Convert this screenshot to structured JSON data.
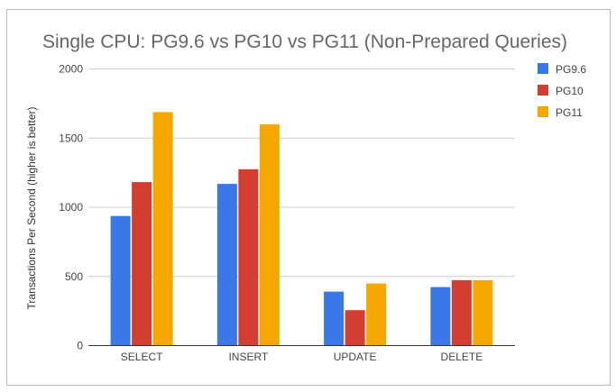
{
  "chart_data": {
    "type": "bar",
    "title": "Single CPU: PG9.6 vs PG10 vs PG11 (Non-Prepared Queries)",
    "xlabel": "",
    "ylabel": "Transactions Per Second (higher is better)",
    "ylim": [
      0,
      2000
    ],
    "yticks": [
      "0",
      "500",
      "1000",
      "1500",
      "2000"
    ],
    "categories": [
      "SELECT",
      "INSERT",
      "UPDATE",
      "DELETE"
    ],
    "series": [
      {
        "name": "PG9.6",
        "color": "#3b78e7",
        "values": [
          937,
          1169,
          390,
          423
        ]
      },
      {
        "name": "PG10",
        "color": "#d23f31",
        "values": [
          1182,
          1275,
          256,
          473
        ]
      },
      {
        "name": "PG11",
        "color": "#f4a800",
        "values": [
          1688,
          1599,
          449,
          473
        ]
      }
    ],
    "grid": true,
    "legend": "right"
  }
}
